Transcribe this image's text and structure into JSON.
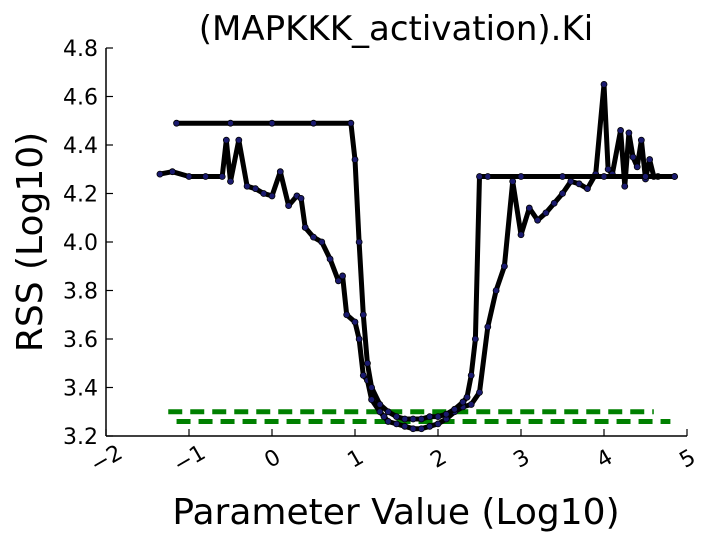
{
  "chart_data": {
    "type": "line",
    "title": "(MAPKKK_activation).Ki",
    "xlabel": "Parameter Value (Log10)",
    "ylabel": "RSS (Log10)",
    "xlim": [
      -2,
      5
    ],
    "ylim": [
      3.2,
      4.8
    ],
    "xticks": [
      "−2",
      "−1",
      "0",
      "1",
      "2",
      "3",
      "4",
      "5"
    ],
    "yticks": [
      "3.2",
      "3.4",
      "3.6",
      "3.8",
      "4.0",
      "4.2",
      "4.4",
      "4.6",
      "4.8"
    ],
    "grid": false,
    "legend": "none",
    "colors": {
      "line": "#000000",
      "marker": "#1a1a6e",
      "threshold": "#008000"
    },
    "series": [
      {
        "style": "solid",
        "x": [
          -1.35,
          -1.2,
          -1.0,
          -0.8,
          -0.6,
          -0.55,
          -0.5,
          -0.4,
          -0.3,
          -0.2,
          -0.1,
          0.0,
          0.1,
          0.2,
          0.3,
          0.35,
          0.4,
          0.5,
          0.6,
          0.7,
          0.8,
          0.85,
          0.9,
          1.0,
          1.05,
          1.1,
          1.15,
          1.2,
          1.3,
          1.35,
          1.4,
          1.5,
          1.6,
          1.7,
          1.8,
          1.9,
          2.0,
          2.1,
          2.2,
          2.3,
          2.4,
          2.5,
          2.6,
          2.7,
          2.8,
          2.9,
          3.0,
          3.1,
          3.2,
          3.3,
          3.4,
          3.5,
          3.6,
          3.7,
          3.8,
          3.9,
          4.0,
          4.05,
          4.1,
          4.2,
          4.25,
          4.3,
          4.35,
          4.4,
          4.45,
          4.5,
          4.55,
          4.6,
          4.65,
          4.85
        ],
        "y": [
          4.28,
          4.29,
          4.27,
          4.27,
          4.27,
          4.42,
          4.25,
          4.42,
          4.23,
          4.22,
          4.2,
          4.19,
          4.29,
          4.15,
          4.19,
          4.18,
          4.06,
          4.02,
          4.0,
          3.93,
          3.84,
          3.86,
          3.7,
          3.67,
          3.6,
          3.45,
          3.43,
          3.35,
          3.3,
          3.28,
          3.26,
          3.25,
          3.24,
          3.23,
          3.23,
          3.24,
          3.25,
          3.27,
          3.3,
          3.32,
          3.33,
          3.38,
          3.65,
          3.8,
          3.9,
          4.25,
          4.03,
          4.14,
          4.09,
          4.12,
          4.16,
          4.2,
          4.25,
          4.24,
          4.22,
          4.28,
          4.65,
          4.3,
          4.28,
          4.46,
          4.23,
          4.45,
          4.35,
          4.31,
          4.42,
          4.26,
          4.34,
          4.27,
          4.27,
          4.27
        ]
      },
      {
        "style": "solid",
        "x": [
          -1.15,
          -0.5,
          0.0,
          0.5,
          0.95,
          1.0,
          1.05,
          1.1,
          1.15,
          1.2,
          1.3,
          1.4,
          1.5,
          1.6,
          1.7,
          1.8,
          1.9,
          2.0,
          2.1,
          2.2,
          2.3,
          2.35,
          2.4,
          2.45,
          2.5,
          2.6,
          3.0,
          3.5,
          4.0,
          4.5,
          4.85
        ],
        "y": [
          4.49,
          4.49,
          4.49,
          4.49,
          4.49,
          4.34,
          4.0,
          3.7,
          3.5,
          3.4,
          3.33,
          3.3,
          3.28,
          3.27,
          3.27,
          3.27,
          3.28,
          3.28,
          3.29,
          3.31,
          3.34,
          3.36,
          3.45,
          3.6,
          4.27,
          4.27,
          4.27,
          4.27,
          4.27,
          4.27,
          4.27
        ]
      }
    ],
    "reference_lines": [
      {
        "style": "dashed",
        "y": 3.3,
        "x": [
          -1.25,
          4.6
        ]
      },
      {
        "style": "dashed",
        "y": 3.26,
        "x": [
          -1.15,
          4.8
        ]
      }
    ]
  }
}
